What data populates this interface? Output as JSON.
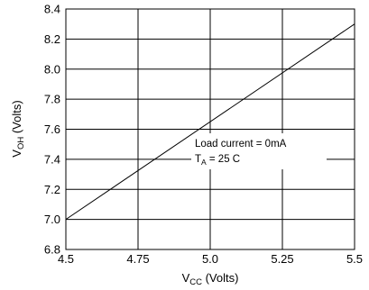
{
  "chart_data": {
    "type": "line",
    "x_values": [
      4.5,
      5.5
    ],
    "y_values": [
      7.0,
      8.3
    ],
    "xlim": [
      4.5,
      5.5
    ],
    "ylim": [
      6.8,
      8.4
    ],
    "x_ticks": [
      "4.5",
      "4.75",
      "5.0",
      "5.25",
      "5.5"
    ],
    "y_ticks": [
      "8.4",
      "8.2",
      "8.0",
      "7.8",
      "7.6",
      "7.4",
      "7.2",
      "7.0",
      "6.8"
    ],
    "xlabel_main": "V",
    "xlabel_sub": "CC",
    "xlabel_unit": " (Volts)",
    "ylabel_main": "V",
    "ylabel_sub": "OH",
    "ylabel_unit": " (Volts)",
    "annotation_line1": "Load current = 0mA",
    "annotation_ta_main": "T",
    "annotation_ta_sub": "A",
    "annotation_ta_rest": " = 25 C",
    "grid": true,
    "line_color": "#000000"
  }
}
